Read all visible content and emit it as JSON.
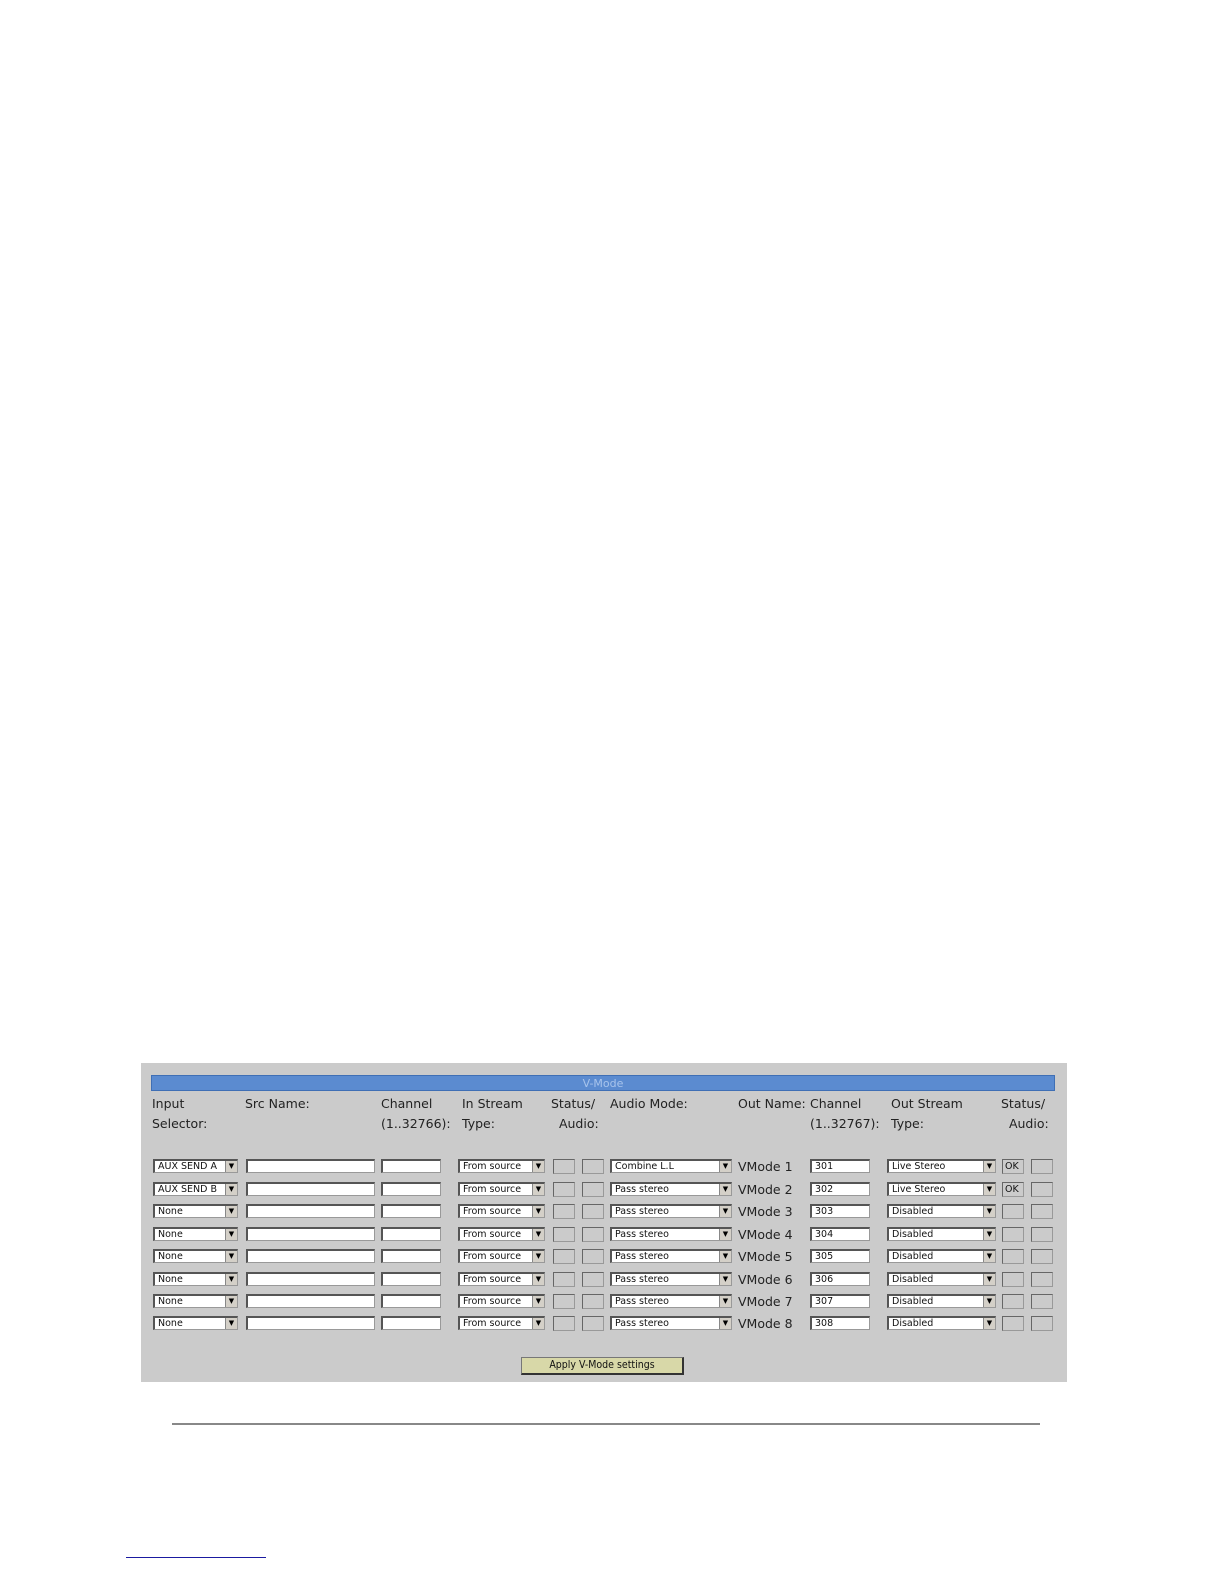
{
  "panel": {
    "title": "V-Mode",
    "headers": {
      "input_selector": "Input\nSelector:",
      "src_name": "Src Name:",
      "in_channel": "Channel\n(1..32766):",
      "in_stream_type": "In Stream\nType:",
      "in_status": "Status/\n  Audio:",
      "audio_mode": "Audio Mode:",
      "out_name": "Out Name:",
      "out_channel": "Channel\n(1..32767):",
      "out_stream_type": "Out Stream\nType:",
      "out_status": "Status/\n  Audio:"
    },
    "rows": [
      {
        "input": "AUX SEND A",
        "src_name": "",
        "channel": "",
        "in_stream": "From source",
        "in_status": "",
        "in_audio": "",
        "audio_mode": "Combine L.L",
        "out_name": "VMode 1",
        "out_channel": "301",
        "out_stream": "Live Stereo",
        "out_status": "OK",
        "out_audio": ""
      },
      {
        "input": "AUX SEND B",
        "src_name": "",
        "channel": "",
        "in_stream": "From source",
        "in_status": "",
        "in_audio": "",
        "audio_mode": "Pass stereo",
        "out_name": "VMode 2",
        "out_channel": "302",
        "out_stream": "Live Stereo",
        "out_status": "OK",
        "out_audio": ""
      },
      {
        "input": "None",
        "src_name": "",
        "channel": "",
        "in_stream": "From source",
        "in_status": "",
        "in_audio": "",
        "audio_mode": "Pass stereo",
        "out_name": "VMode 3",
        "out_channel": "303",
        "out_stream": "Disabled",
        "out_status": "",
        "out_audio": ""
      },
      {
        "input": "None",
        "src_name": "",
        "channel": "",
        "in_stream": "From source",
        "in_status": "",
        "in_audio": "",
        "audio_mode": "Pass stereo",
        "out_name": "VMode 4",
        "out_channel": "304",
        "out_stream": "Disabled",
        "out_status": "",
        "out_audio": ""
      },
      {
        "input": "None",
        "src_name": "",
        "channel": "",
        "in_stream": "From source",
        "in_status": "",
        "in_audio": "",
        "audio_mode": "Pass stereo",
        "out_name": "VMode 5",
        "out_channel": "305",
        "out_stream": "Disabled",
        "out_status": "",
        "out_audio": ""
      },
      {
        "input": "None",
        "src_name": "",
        "channel": "",
        "in_stream": "From source",
        "in_status": "",
        "in_audio": "",
        "audio_mode": "Pass stereo",
        "out_name": "VMode 6",
        "out_channel": "306",
        "out_stream": "Disabled",
        "out_status": "",
        "out_audio": ""
      },
      {
        "input": "None",
        "src_name": "",
        "channel": "",
        "in_stream": "From source",
        "in_status": "",
        "in_audio": "",
        "audio_mode": "Pass stereo",
        "out_name": "VMode 7",
        "out_channel": "307",
        "out_stream": "Disabled",
        "out_status": "",
        "out_audio": ""
      },
      {
        "input": "None",
        "src_name": "",
        "channel": "",
        "in_stream": "From source",
        "in_status": "",
        "in_audio": "",
        "audio_mode": "Pass stereo",
        "out_name": "VMode 8",
        "out_channel": "308",
        "out_stream": "Disabled",
        "out_status": "",
        "out_audio": ""
      }
    ],
    "apply_label": "Apply V-Mode settings",
    "dropdown_icon": "chevron-down-icon",
    "colors": {
      "title_bar": "#5b8bd0",
      "panel_bg": "#cbcbcb",
      "button_bg": "#d8d8a8"
    }
  }
}
